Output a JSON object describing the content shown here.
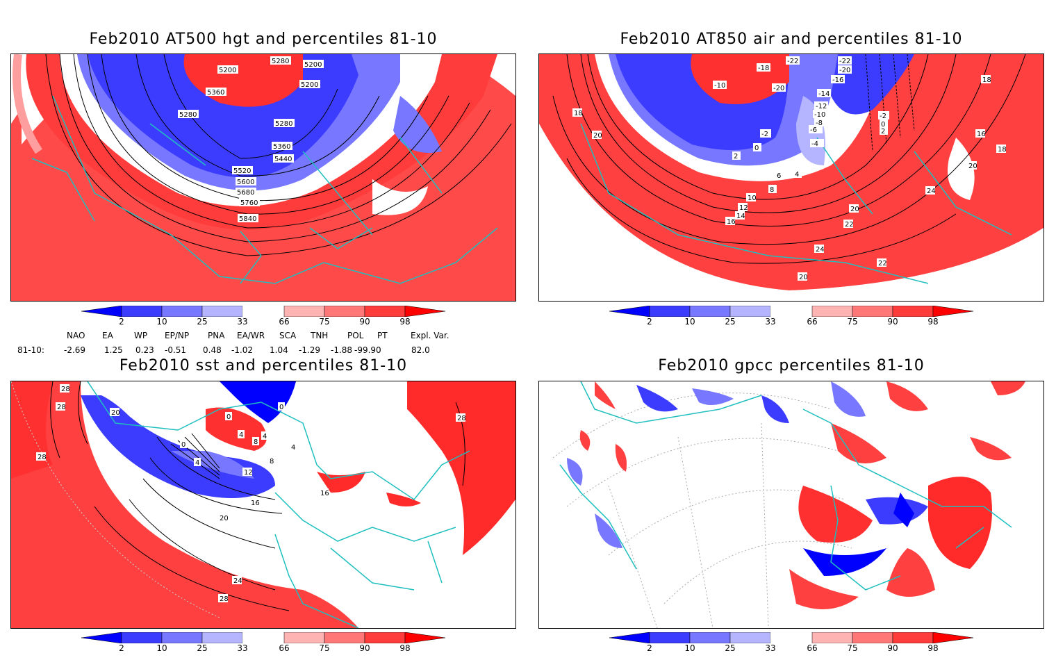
{
  "panels": [
    {
      "title": "Feb2010 AT500 hgt and percentiles 81-10",
      "contour_labels": [
        "5200",
        "5280",
        "5200",
        "5200",
        "5360",
        "5280",
        "5280",
        "5360",
        "5440",
        "5520",
        "5600",
        "5680",
        "5760",
        "5840"
      ]
    },
    {
      "title": "Feb2010 AT850 air and percentiles 81-10",
      "contour_labels": [
        "-22",
        "-22",
        "-18",
        "-20",
        "-10",
        "-20",
        "-16",
        "-14",
        "-12",
        "-10",
        "-8",
        "-6",
        "-4",
        "-2",
        "0",
        "2",
        "18",
        "20",
        "16",
        "18",
        "20",
        "24",
        "20",
        "22",
        "24",
        "22",
        "20",
        "10",
        "12",
        "14",
        "16",
        "6",
        "8",
        "4",
        "2",
        "-2",
        "0",
        "18"
      ]
    },
    {
      "title": "Feb2010 sst and percentiles 81-10",
      "contour_labels": [
        "28",
        "28",
        "28",
        "20",
        "0",
        "4",
        "4",
        "8",
        "0",
        "4",
        "8",
        "12",
        "16",
        "20",
        "24",
        "28",
        "16",
        "28",
        "0",
        "4"
      ]
    },
    {
      "title": "Feb2010 gpcc percentiles 81-10",
      "contour_labels": []
    }
  ],
  "colorbar": {
    "ticks": [
      "2",
      "10",
      "25",
      "33",
      "66",
      "75",
      "90",
      "98"
    ],
    "colors": [
      "#0000ff",
      "#3c3cff",
      "#7777ff",
      "#b4b4ff",
      "#ffffff",
      "#ffb4b4",
      "#ff7777",
      "#ff3c3c",
      "#ff0000"
    ]
  },
  "indices": {
    "header": [
      "NAO",
      "EA",
      "WP",
      "EP/NP",
      "PNA",
      "EA/WR",
      "SCA",
      "TNH",
      "POL",
      "PT",
      "Expl. Var."
    ],
    "row_label": "81-10:",
    "values": [
      "-2.69",
      "1.25",
      "0.23",
      "-0.51",
      "0.48",
      "-1.02",
      "1.04",
      "-1.29",
      "-1.88",
      "-99.90",
      "82.0"
    ]
  }
}
